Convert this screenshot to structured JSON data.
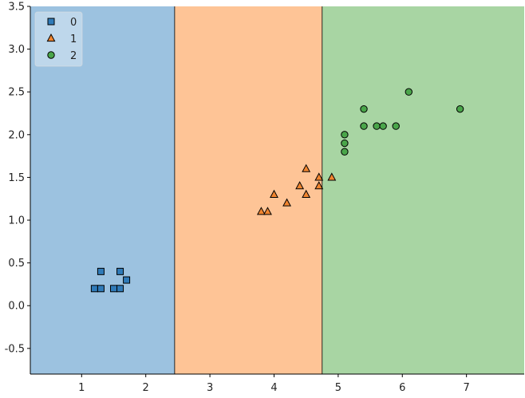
{
  "chart_data": {
    "type": "scatter",
    "title": "",
    "xlabel": "",
    "ylabel": "",
    "xlim": [
      0.2,
      7.9
    ],
    "ylim": [
      -0.8,
      3.5
    ],
    "x_ticks": [
      1,
      2,
      3,
      4,
      5,
      6,
      7
    ],
    "y_ticks": [
      -0.5,
      0.0,
      0.5,
      1.0,
      1.5,
      2.0,
      2.5,
      3.0,
      3.5
    ],
    "x_tick_labels": [
      "1",
      "2",
      "3",
      "4",
      "5",
      "6",
      "7"
    ],
    "y_tick_labels": [
      "-0.5",
      "0.0",
      "0.5",
      "1.0",
      "1.5",
      "2.0",
      "2.5",
      "3.0",
      "3.5"
    ],
    "grid": false,
    "legend_position": "top-left",
    "decision_regions": [
      {
        "class": "0",
        "x_from": 0.2,
        "x_to": 2.45,
        "color": "#9cc2e0"
      },
      {
        "class": "1",
        "x_from": 2.45,
        "x_to": 4.75,
        "color": "#fec496"
      },
      {
        "class": "2",
        "x_from": 4.75,
        "x_to": 7.9,
        "color": "#a8d5a3"
      }
    ],
    "series": [
      {
        "name": "0",
        "marker": "square",
        "color": "#2f7ab8",
        "points": [
          [
            1.3,
            0.4
          ],
          [
            1.6,
            0.4
          ],
          [
            1.7,
            0.3
          ],
          [
            1.2,
            0.2
          ],
          [
            1.3,
            0.2
          ],
          [
            1.5,
            0.2
          ],
          [
            1.6,
            0.2
          ]
        ]
      },
      {
        "name": "1",
        "marker": "triangle",
        "color": "#f1852f",
        "points": [
          [
            3.8,
            1.1
          ],
          [
            3.9,
            1.1
          ],
          [
            4.0,
            1.3
          ],
          [
            4.2,
            1.2
          ],
          [
            4.4,
            1.4
          ],
          [
            4.5,
            1.3
          ],
          [
            4.5,
            1.6
          ],
          [
            4.7,
            1.5
          ],
          [
            4.7,
            1.4
          ],
          [
            4.9,
            1.5
          ]
        ]
      },
      {
        "name": "2",
        "marker": "circle",
        "color": "#4aa54a",
        "points": [
          [
            5.1,
            2.0
          ],
          [
            5.1,
            1.9
          ],
          [
            5.1,
            1.8
          ],
          [
            5.4,
            2.3
          ],
          [
            5.4,
            2.1
          ],
          [
            5.6,
            2.1
          ],
          [
            5.7,
            2.1
          ],
          [
            5.9,
            2.1
          ],
          [
            6.1,
            2.5
          ],
          [
            6.9,
            2.3
          ]
        ]
      }
    ]
  }
}
